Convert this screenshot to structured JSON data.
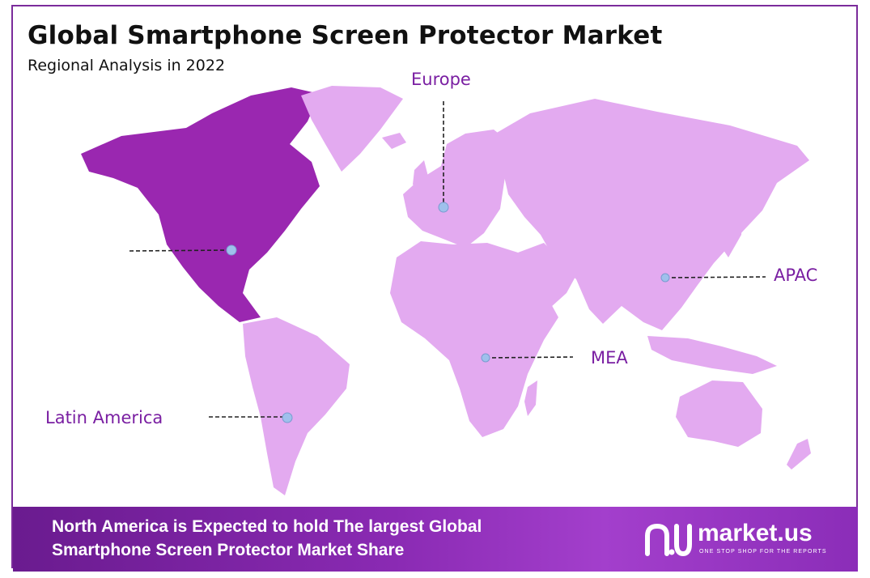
{
  "header": {
    "title": "Global Smartphone Screen Protector Market",
    "subtitle": "Regional Analysis in 2022"
  },
  "regions": [
    {
      "id": "north-america",
      "label": "",
      "highlighted": true
    },
    {
      "id": "europe",
      "label": "Europe",
      "highlighted": false
    },
    {
      "id": "apac",
      "label": "APAC",
      "highlighted": false
    },
    {
      "id": "mea",
      "label": "MEA",
      "highlighted": false
    },
    {
      "id": "latin-america",
      "label": "Latin America",
      "highlighted": false
    }
  ],
  "banner": {
    "text": "North America is Expected to hold The largest Global Smartphone Screen Protector Market Share"
  },
  "logo": {
    "name": "market.us",
    "tagline": "ONE STOP SHOP FOR THE REPORTS"
  },
  "colors": {
    "highlight": "#9a27b0",
    "land": "#e3aaf0",
    "label": "#7a1fa2",
    "marker": "#9fc0ec",
    "banner": "#8a2ab3"
  }
}
